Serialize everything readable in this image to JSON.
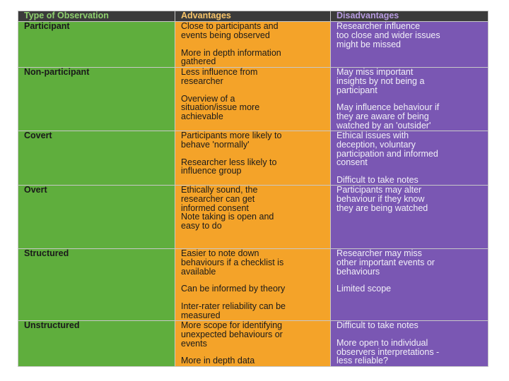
{
  "table": {
    "header": [
      "Type of Observation",
      "Advantages",
      "Disadvantages"
    ],
    "rows": [
      {
        "type": "Participant",
        "advantages": [
          [
            "Close to participants and",
            "events being observed"
          ],
          [
            "More in depth information",
            "gathered"
          ]
        ],
        "disadvantages": [
          [
            "Researcher influence",
            "too close and wider issues",
            "might be missed"
          ]
        ]
      },
      {
        "type": "Non-participant",
        "advantages": [
          [
            "Less influence from",
            "researcher"
          ],
          [
            "Overview of a",
            "situation/issue more",
            "achievable"
          ]
        ],
        "disadvantages": [
          [
            "May miss important",
            "insights by not being a",
            "participant"
          ],
          [
            "May influence behaviour if",
            "they are aware of being",
            "watched by an 'outsider'"
          ]
        ]
      },
      {
        "type": "Covert",
        "advantages": [
          [
            "Participants more likely to",
            "behave 'normally'"
          ],
          [
            "Researcher less likely to",
            "influence group"
          ]
        ],
        "disadvantages": [
          [
            "Ethical issues with",
            "deception, voluntary",
            "participation and informed",
            "consent"
          ],
          [
            "Difficult to take notes"
          ]
        ]
      },
      {
        "type": "Overt",
        "advantages": [
          [
            "Ethically sound, the",
            "researcher can get",
            "informed consent",
            "Note taking is open and",
            "easy to do"
          ]
        ],
        "disadvantages": [
          [
            "Participants may alter",
            "behaviour if they know",
            "they are being watched"
          ]
        ]
      },
      {
        "type": "Structured",
        "advantages": [
          [
            "Easier to note down",
            "behaviours if a checklist is",
            "available"
          ],
          [
            "Can be informed by theory"
          ],
          [
            "Inter-rater reliability can be",
            "measured"
          ]
        ],
        "disadvantages": [
          [
            "Researcher may miss",
            "other important events or",
            "behaviours"
          ],
          [
            "Limited scope"
          ]
        ]
      },
      {
        "type": "Unstructured",
        "advantages": [
          [
            "More scope for identifying",
            "unexpected behaviours or",
            "events"
          ],
          [
            "More in depth data"
          ]
        ],
        "disadvantages": [
          [
            "Difficult to take notes"
          ],
          [
            "More open to individual",
            "observers interpretations -",
            "less reliable?"
          ]
        ]
      }
    ]
  }
}
